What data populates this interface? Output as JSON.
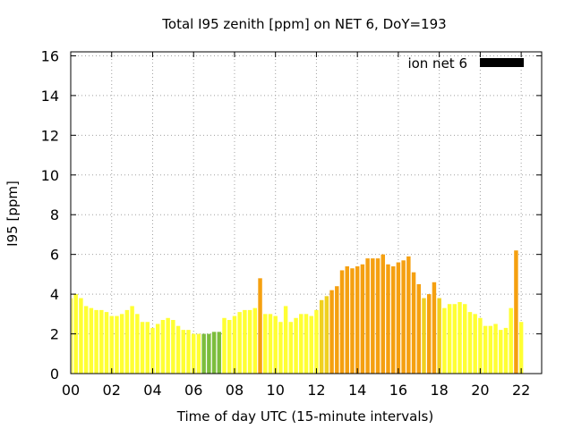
{
  "chart_data": {
    "type": "bar",
    "title": "Total I95 zenith [ppm] on NET 6, DoY=193",
    "xlabel": "Time of day UTC (15-minute intervals)",
    "ylabel": "I95 [ppm]",
    "xlim": [
      0,
      23
    ],
    "ylim": [
      0,
      16.2
    ],
    "x_ticks": [
      "00",
      "02",
      "04",
      "06",
      "08",
      "10",
      "12",
      "14",
      "16",
      "18",
      "20",
      "22"
    ],
    "y_ticks": [
      "0",
      "2",
      "4",
      "6",
      "8",
      "10",
      "12",
      "14",
      "16"
    ],
    "grid": true,
    "legend_position": "top-right",
    "legend": [
      {
        "name": "ion net 6",
        "color": "#000000"
      }
    ],
    "interval_hours": 0.25,
    "color_scale": {
      "green": "#7cbd3c",
      "yellow": "#ffff33",
      "gold": "#f0d020",
      "orange": "#f5a010"
    },
    "values": [
      3.8,
      4.0,
      3.8,
      3.4,
      3.3,
      3.2,
      3.2,
      3.1,
      2.9,
      2.9,
      3.0,
      3.2,
      3.4,
      3.0,
      2.6,
      2.6,
      2.3,
      2.5,
      2.7,
      2.8,
      2.7,
      2.4,
      2.2,
      2.2,
      2.0,
      2.0,
      2.0,
      2.0,
      2.1,
      2.1,
      2.8,
      2.7,
      2.9,
      3.1,
      3.2,
      3.2,
      3.3,
      4.8,
      3.0,
      3.0,
      2.9,
      2.6,
      3.4,
      2.6,
      2.8,
      3.0,
      3.0,
      2.9,
      3.2,
      3.7,
      3.9,
      4.2,
      4.4,
      5.2,
      5.4,
      5.3,
      5.4,
      5.5,
      5.8,
      5.8,
      5.8,
      6.0,
      5.5,
      5.4,
      5.6,
      5.7,
      5.9,
      5.1,
      4.5,
      3.8,
      4.0,
      4.6,
      3.8,
      3.3,
      3.5,
      3.5,
      3.6,
      3.5,
      3.1,
      3.0,
      2.8,
      2.4,
      2.4,
      2.5,
      2.2,
      2.3,
      3.3,
      6.2,
      2.6
    ],
    "colors": [
      "yellow",
      "yellow",
      "yellow",
      "yellow",
      "yellow",
      "yellow",
      "yellow",
      "yellow",
      "yellow",
      "yellow",
      "yellow",
      "yellow",
      "yellow",
      "yellow",
      "yellow",
      "yellow",
      "yellow",
      "yellow",
      "yellow",
      "yellow",
      "yellow",
      "yellow",
      "yellow",
      "yellow",
      "yellow",
      "yellow",
      "green",
      "green",
      "green",
      "green",
      "yellow",
      "yellow",
      "yellow",
      "yellow",
      "yellow",
      "yellow",
      "yellow",
      "orange",
      "yellow",
      "yellow",
      "yellow",
      "yellow",
      "yellow",
      "yellow",
      "yellow",
      "yellow",
      "yellow",
      "yellow",
      "yellow",
      "gold",
      "gold",
      "orange",
      "orange",
      "orange",
      "orange",
      "orange",
      "orange",
      "orange",
      "orange",
      "orange",
      "orange",
      "orange",
      "orange",
      "orange",
      "orange",
      "orange",
      "orange",
      "orange",
      "orange",
      "gold",
      "orange",
      "orange",
      "gold",
      "yellow",
      "yellow",
      "yellow",
      "yellow",
      "yellow",
      "yellow",
      "yellow",
      "yellow",
      "yellow",
      "yellow",
      "yellow",
      "yellow",
      "yellow",
      "yellow",
      "orange",
      "yellow"
    ]
  }
}
